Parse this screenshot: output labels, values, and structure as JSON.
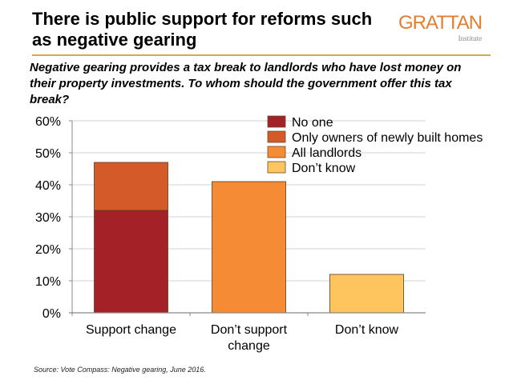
{
  "header": {
    "title": "There is public support for reforms such as negative gearing",
    "logo_main": "GRATTAN",
    "logo_sub": "Institute"
  },
  "subtitle": "Negative gearing provides a tax break to landlords who have lost money on their property investments. To whom should the government offer this tax break?",
  "source": "Source: Vote Compass: Negative gearing, June 2016.",
  "colors": {
    "no_one": "#a32127",
    "only_new": "#d55a2a",
    "all_landlords": "#f58b35",
    "dont_know": "#fec45e",
    "accent_rule": "#d9a84a",
    "brand": "#e57e32"
  },
  "chart_data": {
    "type": "bar",
    "stacked": true,
    "title": "There is public support for reforms such as negative gearing",
    "xlabel": "",
    "ylabel": "",
    "ylim": [
      0,
      60
    ],
    "yticks": [
      "0%",
      "10%",
      "20%",
      "30%",
      "40%",
      "50%",
      "60%"
    ],
    "ytick_values": [
      0,
      10,
      20,
      30,
      40,
      50,
      60
    ],
    "grid": true,
    "legend_position": "top-right",
    "categories": [
      "Support change",
      "Don’t support change",
      "Don’t know"
    ],
    "category_lines": [
      [
        "Support change"
      ],
      [
        "Don’t support",
        "change"
      ],
      [
        "Don’t know"
      ]
    ],
    "series": [
      {
        "name": "No one",
        "key": "no_one",
        "values": [
          32,
          0,
          0
        ]
      },
      {
        "name": "Only owners of newly built homes",
        "key": "only_new",
        "values": [
          15,
          0,
          0
        ]
      },
      {
        "name": "All landlords",
        "key": "all_landlords",
        "values": [
          0,
          41,
          0
        ]
      },
      {
        "name": "Don’t know",
        "key": "dont_know",
        "values": [
          0,
          0,
          12
        ]
      }
    ]
  }
}
